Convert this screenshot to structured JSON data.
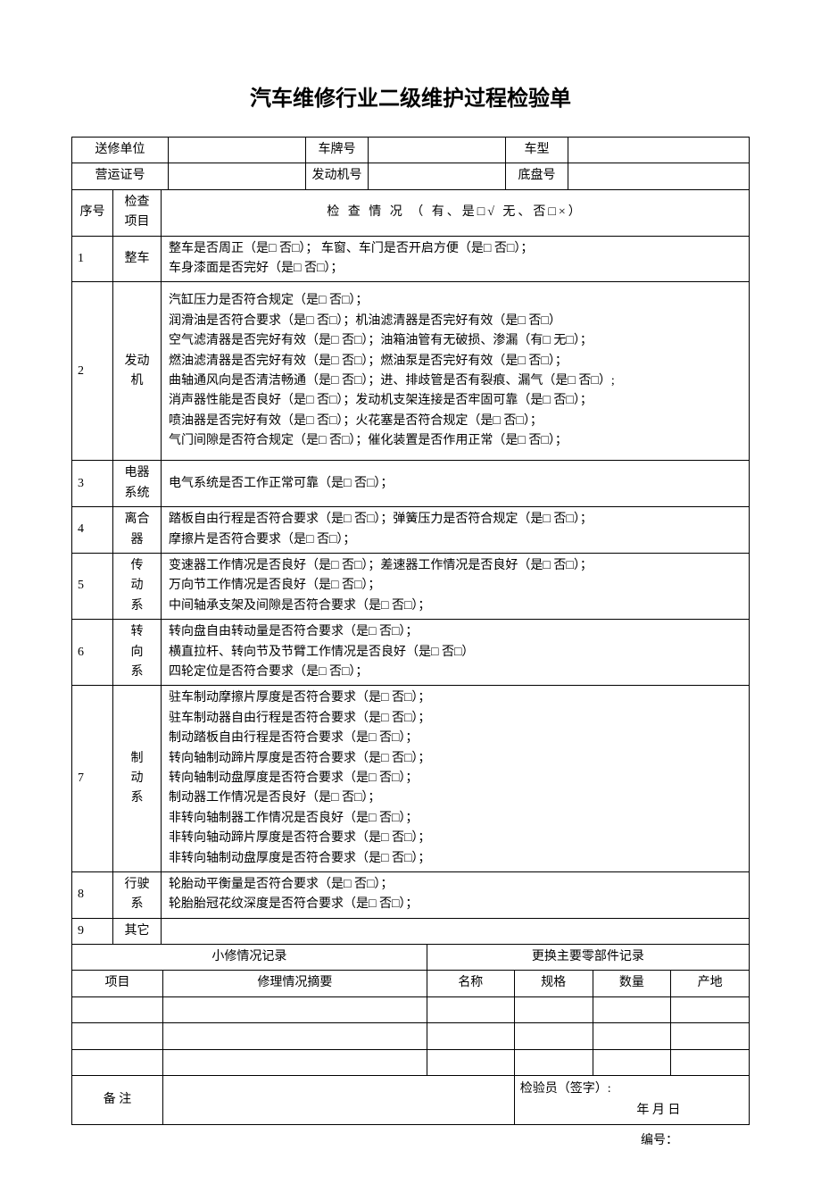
{
  "title": "汽车维修行业二级维护过程检验单",
  "header": {
    "row1": {
      "label1": "送修单位",
      "label2": "车牌号",
      "label3": "车型"
    },
    "row2": {
      "label1": "营运证号",
      "label2": "发动机号",
      "label3": "底盘号"
    }
  },
  "inspectionHeader": {
    "seq": "序号",
    "item": "检查项目",
    "status": "检 查 情 况  （ 有、是□√   无、否□×）"
  },
  "rows": [
    {
      "seq": "1",
      "item": "整车",
      "content": "整车是否周正（是□   否□）； 车窗、车门是否开启方便（是□   否□）；\n车身漆面是否完好（是□   否□）；"
    },
    {
      "seq": "2",
      "item": "发动机",
      "content": "汽缸压力是否符合规定（是□   否□）；\n润滑油是否符合要求（是□   否□）；机油滤清器是否完好有效（是□   否□）\n空气滤清器是否完好有效（是□   否□）；油箱油管有无破损、渗漏（有□   无□）；\n燃油滤清器是否完好有效（是□   否□）；燃油泵是否完好有效（是□   否□）；\n曲轴通风向是否清洁畅通（是□   否□）；进、排歧管是否有裂痕、漏气（是□   否□）;\n消声器性能是否良好（是□   否□）；发动机支架连接是否牢固可靠（是□   否□）；\n喷油器是否完好有效（是□   否□）；火花塞是否符合规定（是□   否□）；\n气门间隙是否符合规定（是□   否□）；催化装置是否作用正常（是□   否□）；"
    },
    {
      "seq": "3",
      "item": "电器系统",
      "content": "电气系统是否工作正常可靠（是□   否□）；"
    },
    {
      "seq": "4",
      "item": "离合器",
      "content": "踏板自由行程是否符合要求（是□   否□）；弹簧压力是否符合规定（是□   否□）；\n摩擦片是否符合要求（是□   否□）；"
    },
    {
      "seq": "5",
      "item": "传动系",
      "content": "变速器工作情况是否良好（是□   否□）；差速器工作情况是否良好（是□   否□）；\n万向节工作情况是否良好（是□   否□）；\n中间轴承支架及间隙是否符合要求（是□   否□）；"
    },
    {
      "seq": "6",
      "item": "转向系",
      "content": "转向盘自由转动量是否符合要求（是□   否□）；\n横直拉杆、转向节及节臂工作情况是否良好（是□   否□）\n四轮定位是否符合要求（是□   否□）；"
    },
    {
      "seq": "7",
      "item": "制动系",
      "content": "驻车制动摩擦片厚度是否符合要求（是□   否□）；\n驻车制动器自由行程是否符合要求（是□   否□）；\n制动踏板自由行程是否符合要求（是□   否□）；\n转向轴制动蹄片厚度是否符合要求（是□   否□）；\n转向轴制动盘厚度是否符合要求（是□   否□）；\n制动器工作情况是否良好（是□   否□）；\n非转向轴制器工作情况是否良好（是□   否□）；\n非转向轴动蹄片厚度是否符合要求（是□   否□）；\n非转向轴制动盘厚度是否符合要求（是□   否□）；"
    },
    {
      "seq": "8",
      "item": "行驶系",
      "content": "轮胎动平衡量是否符合要求（是□   否□）；\n轮胎胎冠花纹深度是否符合要求（是□   否□）；"
    },
    {
      "seq": "9",
      "item": "其它",
      "content": ""
    }
  ],
  "repairSection": {
    "minorRepairTitle": "小修情况记录",
    "partsReplaceTitle": "更换主要零部件记录",
    "col1": "项目",
    "col2": "修理情况摘要",
    "col3": "名称",
    "col4": "规格",
    "col5": "数量",
    "col6": "产地"
  },
  "remarks": {
    "label": "备   注",
    "inspector": "检验员（签字）:",
    "date": "年   月   日"
  },
  "footer": "编号："
}
